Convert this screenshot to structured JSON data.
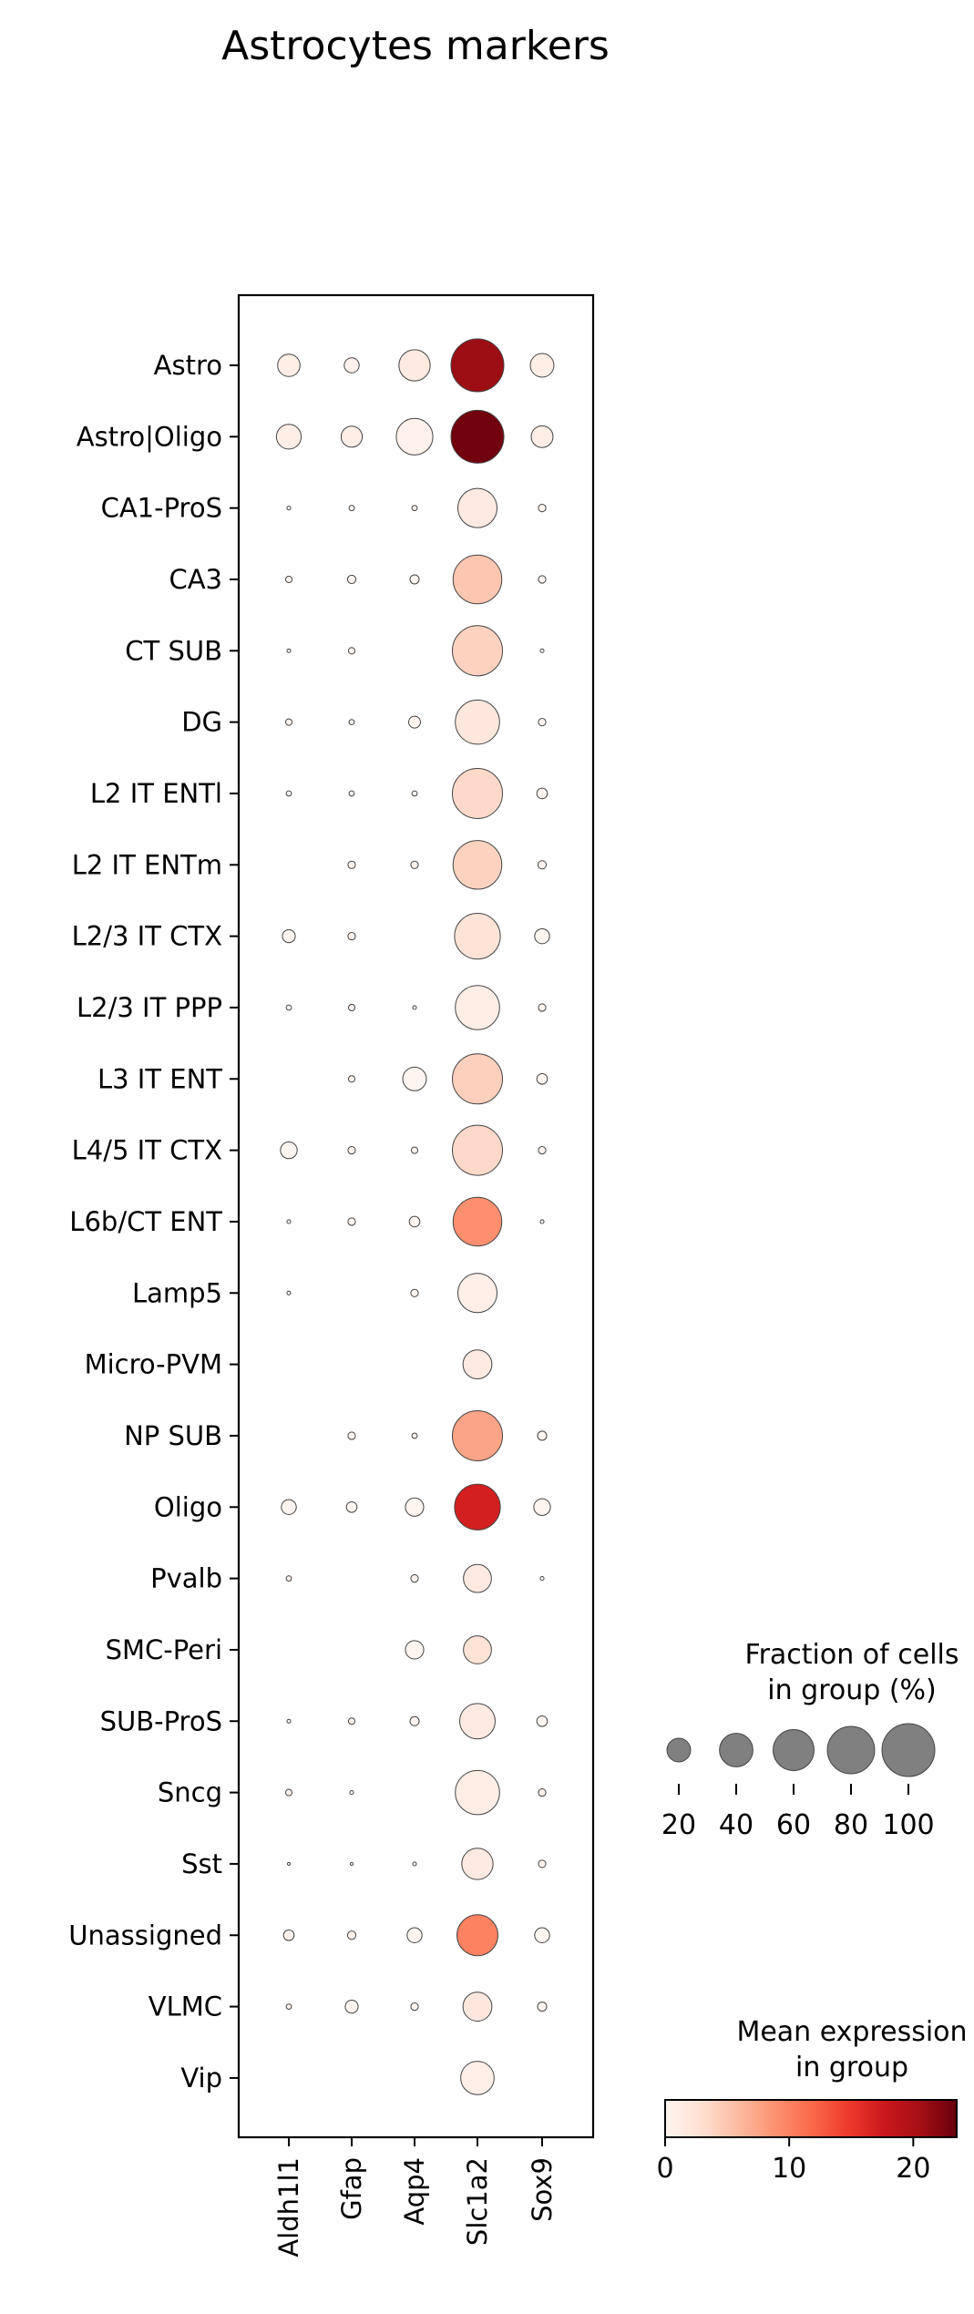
{
  "chart_data": {
    "type": "dotplot",
    "title": "Astrocytes markers",
    "genes": [
      "Aldh1l1",
      "Gfap",
      "Aqp4",
      "Slc1a2",
      "Sox9"
    ],
    "groups": [
      "Astro",
      "Astro|Oligo",
      "CA1-ProS",
      "CA3",
      "CT SUB",
      "DG",
      "L2 IT ENTl",
      "L2 IT ENTm",
      "L2/3 IT CTX",
      "L2/3 IT PPP",
      "L3 IT ENT",
      "L4/5 IT CTX",
      "L6b/CT ENT",
      "Lamp5",
      "Micro-PVM",
      "NP SUB",
      "Oligo",
      "Pvalb",
      "SMC-Peri",
      "SUB-ProS",
      "Sncg",
      "Sst",
      "Unassigned",
      "VLMC",
      "Vip"
    ],
    "fraction_pct": [
      [
        18,
        8,
        35,
        100,
        20
      ],
      [
        22,
        16,
        48,
        100,
        17
      ],
      [
        0.5,
        1,
        1,
        55,
        2
      ],
      [
        1.5,
        2.5,
        3,
        85,
        2
      ],
      [
        0.5,
        1.5,
        0,
        90,
        0.5
      ],
      [
        1.5,
        1,
        5,
        70,
        2
      ],
      [
        1,
        1,
        1,
        90,
        4
      ],
      [
        0,
        2,
        2,
        85,
        2.5
      ],
      [
        6,
        2,
        0,
        75,
        8
      ],
      [
        1,
        1.5,
        0.5,
        70,
        2
      ],
      [
        0,
        1.5,
        20,
        90,
        4
      ],
      [
        10,
        2,
        1.5,
        90,
        2
      ],
      [
        0.5,
        2,
        4,
        85,
        0.5
      ],
      [
        0.5,
        0,
        2,
        55,
        0
      ],
      [
        0,
        0,
        0,
        30,
        0
      ],
      [
        0,
        2,
        1,
        90,
        3
      ],
      [
        8,
        4,
        12,
        75,
        10
      ],
      [
        1,
        0,
        2,
        28,
        0.5
      ],
      [
        0,
        0,
        12,
        28,
        0
      ],
      [
        0.5,
        1.5,
        3,
        45,
        4
      ],
      [
        1.5,
        0.5,
        0,
        70,
        2
      ],
      [
        0.3,
        0.3,
        0.5,
        35,
        2
      ],
      [
        4,
        2.5,
        8,
        60,
        8
      ],
      [
        1,
        6,
        2,
        30,
        3
      ],
      [
        0,
        0,
        0,
        40,
        0
      ]
    ],
    "mean_expression": [
      [
        1,
        0.5,
        1.5,
        21,
        1
      ],
      [
        1,
        1,
        0.5,
        23,
        1
      ],
      [
        0,
        0,
        0,
        1.5,
        0
      ],
      [
        0,
        0,
        0,
        5,
        0
      ],
      [
        0,
        0,
        0,
        4,
        0
      ],
      [
        0,
        0,
        0,
        2,
        0
      ],
      [
        0,
        0,
        0,
        3.5,
        0
      ],
      [
        0,
        0,
        0,
        4,
        0
      ],
      [
        0,
        0,
        0,
        2.5,
        0
      ],
      [
        0,
        0,
        0,
        1,
        0
      ],
      [
        0,
        0,
        0,
        4.2,
        0
      ],
      [
        0,
        0,
        0,
        3.5,
        0
      ],
      [
        0,
        0,
        0,
        9,
        0
      ],
      [
        0,
        0,
        0,
        0.8,
        0
      ],
      [
        0,
        0,
        0,
        1.5,
        0
      ],
      [
        0,
        0,
        0,
        7.5,
        0
      ],
      [
        0,
        0,
        0,
        17,
        0
      ],
      [
        0,
        0,
        0,
        1.5,
        0
      ],
      [
        0,
        0,
        0,
        2.5,
        0
      ],
      [
        0,
        0,
        0,
        1.5,
        0
      ],
      [
        0,
        0,
        0,
        1,
        0
      ],
      [
        0,
        0,
        0,
        1.5,
        0
      ],
      [
        0,
        0,
        0,
        10,
        0
      ],
      [
        0,
        0,
        0,
        1.8,
        0
      ],
      [
        0,
        0,
        0,
        0.8,
        0
      ]
    ],
    "size_legend": {
      "title_line1": "Fraction of cells",
      "title_line2": "in group (%)",
      "values": [
        20,
        40,
        60,
        80,
        100
      ],
      "labels": [
        "20",
        "40",
        "60",
        "80",
        "100"
      ]
    },
    "color_legend": {
      "title_line1": "Mean expression",
      "title_line2": "in group",
      "range": [
        0,
        23.5
      ],
      "ticks": [
        0,
        10,
        20
      ],
      "tick_labels": [
        "0",
        "10",
        "20"
      ],
      "colormap": "Reds",
      "colors": [
        "#fff5f0",
        "#fee0d2",
        "#fcbba1",
        "#fc9272",
        "#fb6a4a",
        "#ef3b2c",
        "#cb181d",
        "#a50f15",
        "#67000d"
      ]
    }
  }
}
